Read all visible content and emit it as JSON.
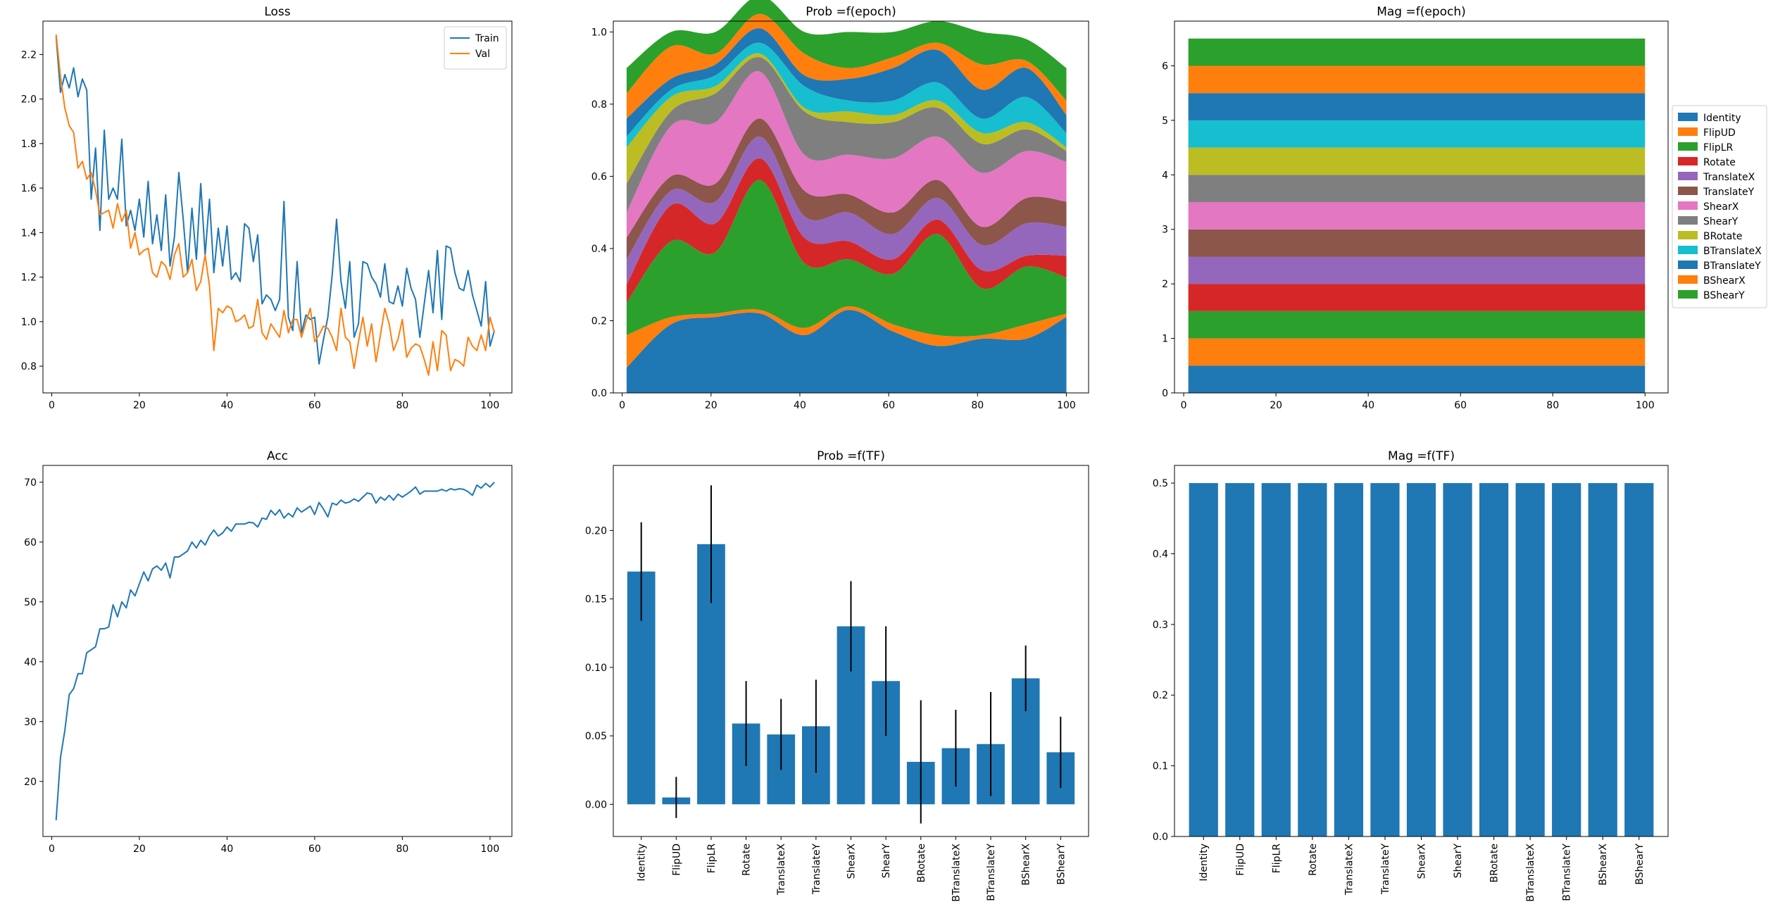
{
  "colors": {
    "tab10": [
      "#1f77b4",
      "#ff7f0e",
      "#2ca02c",
      "#d62728",
      "#9467bd",
      "#8c564b",
      "#e377c2",
      "#7f7f7f",
      "#bcbd22",
      "#17becf"
    ],
    "bar": "#1f77b4",
    "errorbar": "#000000",
    "axes": "#000000"
  },
  "transforms": [
    "Identity",
    "FlipUD",
    "FlipLR",
    "Rotate",
    "TranslateX",
    "TranslateY",
    "ShearX",
    "ShearY",
    "BRotate",
    "BTranslateX",
    "BTranslateY",
    "BShearX",
    "BShearY"
  ],
  "chart_data": [
    {
      "id": "loss",
      "type": "line",
      "title": "Loss",
      "xlim": [
        -2,
        105
      ],
      "ylim": [
        0.68,
        2.35
      ],
      "xticks": [
        0,
        20,
        40,
        60,
        80,
        100
      ],
      "yticks": [
        0.8,
        1.0,
        1.2,
        1.4,
        1.6,
        1.8,
        2.0,
        2.2
      ],
      "ytick_decimals": 1,
      "legend": {
        "position": "top-right",
        "entries": [
          "Train",
          "Val"
        ]
      },
      "series": [
        {
          "name": "Train",
          "x_start": 1,
          "values": [
            2.28,
            2.03,
            2.11,
            2.05,
            2.14,
            2.01,
            2.09,
            2.04,
            1.55,
            1.78,
            1.41,
            1.86,
            1.55,
            1.6,
            1.55,
            1.82,
            1.43,
            1.5,
            1.41,
            1.55,
            1.38,
            1.63,
            1.35,
            1.48,
            1.32,
            1.57,
            1.25,
            1.38,
            1.67,
            1.46,
            1.22,
            1.51,
            1.28,
            1.62,
            1.3,
            1.55,
            1.22,
            1.42,
            1.25,
            1.43,
            1.19,
            1.22,
            1.18,
            1.44,
            1.42,
            1.27,
            1.39,
            1.08,
            1.12,
            1.1,
            1.05,
            1.1,
            1.54,
            1.02,
            0.96,
            1.27,
            0.95,
            1.03,
            1.01,
            1.02,
            0.81,
            0.92,
            1.02,
            1.21,
            1.46,
            1.18,
            1.06,
            1.27,
            0.93,
            0.99,
            1.27,
            1.26,
            1.2,
            1.17,
            1.11,
            1.26,
            1.09,
            1.08,
            1.16,
            1.07,
            1.24,
            1.15,
            1.1,
            0.93,
            1.08,
            1.23,
            1.04,
            1.32,
            1.01,
            1.34,
            1.33,
            1.22,
            1.15,
            1.14,
            1.23,
            1.12,
            1.05,
            0.98,
            1.18,
            0.89,
            0.96
          ]
        },
        {
          "name": "Val",
          "x_start": 1,
          "values": [
            2.29,
            2.1,
            1.96,
            1.88,
            1.85,
            1.69,
            1.72,
            1.64,
            1.67,
            1.59,
            1.48,
            1.49,
            1.5,
            1.42,
            1.53,
            1.45,
            1.5,
            1.33,
            1.4,
            1.3,
            1.32,
            1.33,
            1.22,
            1.2,
            1.27,
            1.25,
            1.19,
            1.3,
            1.35,
            1.2,
            1.22,
            1.28,
            1.14,
            1.18,
            1.3,
            1.16,
            0.87,
            1.06,
            1.04,
            1.07,
            1.06,
            1.0,
            1.01,
            1.03,
            0.97,
            0.98,
            1.1,
            0.95,
            0.92,
            0.99,
            0.96,
            0.93,
            1.05,
            0.95,
            1.01,
            1.01,
            0.93,
            1.0,
            1.06,
            0.91,
            0.94,
            0.98,
            0.97,
            0.93,
            0.87,
            1.06,
            0.93,
            0.91,
            0.79,
            0.91,
            1.02,
            0.89,
            0.99,
            0.82,
            0.94,
            1.06,
            0.99,
            0.87,
            0.92,
            1.01,
            0.84,
            0.88,
            0.9,
            0.89,
            0.83,
            0.76,
            0.91,
            0.78,
            0.96,
            0.94,
            0.78,
            0.83,
            0.82,
            0.8,
            0.93,
            0.89,
            0.87,
            0.94,
            0.87,
            1.02,
            0.95
          ]
        }
      ]
    },
    {
      "id": "prob-epoch",
      "type": "area",
      "title": "Prob =f(epoch)",
      "stacked": true,
      "xlim": [
        -2,
        105
      ],
      "ylim": [
        0.0,
        1.03
      ],
      "xticks": [
        0,
        20,
        40,
        60,
        80,
        100
      ],
      "yticks": [
        0.0,
        0.2,
        0.4,
        0.6,
        0.8,
        1.0
      ],
      "ytick_decimals": 1,
      "x": [
        1,
        11,
        21,
        31,
        41,
        51,
        61,
        71,
        81,
        91,
        100
      ],
      "series": [
        {
          "name": "Identity",
          "values": [
            0.07,
            0.19,
            0.21,
            0.22,
            0.16,
            0.23,
            0.17,
            0.13,
            0.15,
            0.15,
            0.21
          ]
        },
        {
          "name": "FlipUD",
          "values": [
            0.09,
            0.02,
            0.01,
            0.01,
            0.02,
            0.01,
            0.02,
            0.03,
            0.01,
            0.04,
            0.01
          ]
        },
        {
          "name": "FlipLR",
          "values": [
            0.09,
            0.21,
            0.17,
            0.36,
            0.18,
            0.13,
            0.14,
            0.28,
            0.13,
            0.16,
            0.1
          ]
        },
        {
          "name": "Rotate",
          "values": [
            0.05,
            0.1,
            0.08,
            0.06,
            0.07,
            0.05,
            0.04,
            0.04,
            0.05,
            0.03,
            0.06
          ]
        },
        {
          "name": "TranslateX",
          "values": [
            0.07,
            0.04,
            0.06,
            0.06,
            0.06,
            0.08,
            0.07,
            0.06,
            0.07,
            0.09,
            0.08
          ]
        },
        {
          "name": "TranslateY",
          "values": [
            0.06,
            0.04,
            0.05,
            0.05,
            0.07,
            0.05,
            0.06,
            0.05,
            0.05,
            0.07,
            0.07
          ]
        },
        {
          "name": "ShearX",
          "values": [
            0.07,
            0.14,
            0.17,
            0.13,
            0.1,
            0.11,
            0.15,
            0.12,
            0.15,
            0.13,
            0.11
          ]
        },
        {
          "name": "ShearY",
          "values": [
            0.08,
            0.04,
            0.08,
            0.04,
            0.12,
            0.09,
            0.1,
            0.08,
            0.08,
            0.06,
            0.03
          ]
        },
        {
          "name": "BRotate",
          "values": [
            0.1,
            0.04,
            0.02,
            0.01,
            0.01,
            0.03,
            0.02,
            0.02,
            0.03,
            0.02,
            0.01
          ]
        },
        {
          "name": "BTranslateX",
          "values": [
            0.03,
            0.02,
            0.03,
            0.03,
            0.06,
            0.03,
            0.04,
            0.05,
            0.04,
            0.07,
            0.04
          ]
        },
        {
          "name": "BTranslateY",
          "values": [
            0.05,
            0.03,
            0.03,
            0.04,
            0.03,
            0.06,
            0.09,
            0.09,
            0.08,
            0.08,
            0.05
          ]
        },
        {
          "name": "BShearX",
          "values": [
            0.07,
            0.09,
            0.03,
            0.04,
            0.06,
            0.03,
            0.03,
            0.02,
            0.07,
            0.02,
            0.04
          ]
        },
        {
          "name": "BShearY",
          "values": [
            0.07,
            0.04,
            0.06,
            0.05,
            0.06,
            0.1,
            0.07,
            0.06,
            0.09,
            0.06,
            0.09
          ]
        }
      ]
    },
    {
      "id": "mag-epoch",
      "type": "area",
      "title": "Mag =f(epoch)",
      "stacked": true,
      "xlim": [
        -2,
        105
      ],
      "ylim": [
        0.0,
        6.82
      ],
      "xticks": [
        0,
        20,
        40,
        60,
        80,
        100
      ],
      "yticks": [
        0,
        1,
        2,
        3,
        4,
        5,
        6
      ],
      "ytick_decimals": 0,
      "x": [
        1,
        100
      ],
      "legend": {
        "position": "outside-right",
        "entries": [
          "Identity",
          "FlipUD",
          "FlipLR",
          "Rotate",
          "TranslateX",
          "TranslateY",
          "ShearX",
          "ShearY",
          "BRotate",
          "BTranslateX",
          "BTranslateY",
          "BShearX",
          "BShearY"
        ]
      },
      "series": [
        {
          "name": "Identity",
          "values": [
            0.5,
            0.5
          ]
        },
        {
          "name": "FlipUD",
          "values": [
            0.5,
            0.5
          ]
        },
        {
          "name": "FlipLR",
          "values": [
            0.5,
            0.5
          ]
        },
        {
          "name": "Rotate",
          "values": [
            0.5,
            0.5
          ]
        },
        {
          "name": "TranslateX",
          "values": [
            0.5,
            0.5
          ]
        },
        {
          "name": "TranslateY",
          "values": [
            0.5,
            0.5
          ]
        },
        {
          "name": "ShearX",
          "values": [
            0.5,
            0.5
          ]
        },
        {
          "name": "ShearY",
          "values": [
            0.5,
            0.5
          ]
        },
        {
          "name": "BRotate",
          "values": [
            0.5,
            0.5
          ]
        },
        {
          "name": "BTranslateX",
          "values": [
            0.5,
            0.5
          ]
        },
        {
          "name": "BTranslateY",
          "values": [
            0.5,
            0.5
          ]
        },
        {
          "name": "BShearX",
          "values": [
            0.5,
            0.5
          ]
        },
        {
          "name": "BShearY",
          "values": [
            0.5,
            0.5
          ]
        }
      ]
    },
    {
      "id": "acc",
      "type": "line",
      "title": "Acc",
      "xlim": [
        -2,
        105
      ],
      "ylim": [
        10.8,
        72.8
      ],
      "xticks": [
        0,
        20,
        40,
        60,
        80,
        100
      ],
      "yticks": [
        20,
        30,
        40,
        50,
        60,
        70
      ],
      "ytick_decimals": 0,
      "series": [
        {
          "x_start": 1,
          "values": [
            13.5,
            24.0,
            28.5,
            34.5,
            35.5,
            38.0,
            38.0,
            41.5,
            42.0,
            42.5,
            45.5,
            45.5,
            45.8,
            49.5,
            47.5,
            50.0,
            49.0,
            52.0,
            51.0,
            53.0,
            55.0,
            53.5,
            55.5,
            56.0,
            55.3,
            56.5,
            54.0,
            57.5,
            57.5,
            58.0,
            58.5,
            60.0,
            59.0,
            60.3,
            59.5,
            61.0,
            62.0,
            61.0,
            61.5,
            62.5,
            61.8,
            63.0,
            63.0,
            63.0,
            63.3,
            63.2,
            62.5,
            64.0,
            63.8,
            65.3,
            64.5,
            65.4,
            64.0,
            64.8,
            64.2,
            65.7,
            65.0,
            65.5,
            66.0,
            64.6,
            66.6,
            65.5,
            64.2,
            66.5,
            66.2,
            67.0,
            66.5,
            66.7,
            67.2,
            66.8,
            67.5,
            68.2,
            68.0,
            66.5,
            67.5,
            67.0,
            67.8,
            67.0,
            68.0,
            67.5,
            68.0,
            68.5,
            69.2,
            68.0,
            68.5,
            68.5,
            68.5,
            68.5,
            68.8,
            68.5,
            68.9,
            68.7,
            68.9,
            68.8,
            68.4,
            67.8,
            69.5,
            69.0,
            69.8,
            69.2,
            70.0
          ]
        }
      ]
    },
    {
      "id": "prob-tf",
      "type": "bar",
      "title": "Prob =f(TF)",
      "xlim": [
        -0.8,
        12.8
      ],
      "ylim": [
        -0.0235,
        0.2475
      ],
      "yticks": [
        0.0,
        0.05,
        0.1,
        0.15,
        0.2
      ],
      "ytick_decimals": 2,
      "categories": [
        "Identity",
        "FlipUD",
        "FlipLR",
        "Rotate",
        "TranslateX",
        "TranslateY",
        "ShearX",
        "ShearY",
        "BRotate",
        "BTranslateX",
        "BTranslateY",
        "BShearX",
        "BShearY"
      ],
      "values": [
        0.17,
        0.005,
        0.19,
        0.059,
        0.051,
        0.057,
        0.13,
        0.09,
        0.031,
        0.041,
        0.044,
        0.092,
        0.038
      ],
      "errors": [
        0.036,
        0.015,
        0.043,
        0.031,
        0.026,
        0.034,
        0.033,
        0.04,
        0.045,
        0.028,
        0.038,
        0.024,
        0.026
      ]
    },
    {
      "id": "mag-tf",
      "type": "bar",
      "title": "Mag =f(TF)",
      "xlim": [
        -0.8,
        12.8
      ],
      "ylim": [
        0.0,
        0.525
      ],
      "yticks": [
        0.0,
        0.1,
        0.2,
        0.3,
        0.4,
        0.5
      ],
      "ytick_decimals": 1,
      "categories": [
        "Identity",
        "FlipUD",
        "FlipLR",
        "Rotate",
        "TranslateX",
        "TranslateY",
        "ShearX",
        "ShearY",
        "BRotate",
        "BTranslateX",
        "BTranslateY",
        "BShearX",
        "BShearY"
      ],
      "values": [
        0.5,
        0.5,
        0.5,
        0.5,
        0.5,
        0.5,
        0.5,
        0.5,
        0.5,
        0.5,
        0.5,
        0.5,
        0.5
      ]
    }
  ]
}
